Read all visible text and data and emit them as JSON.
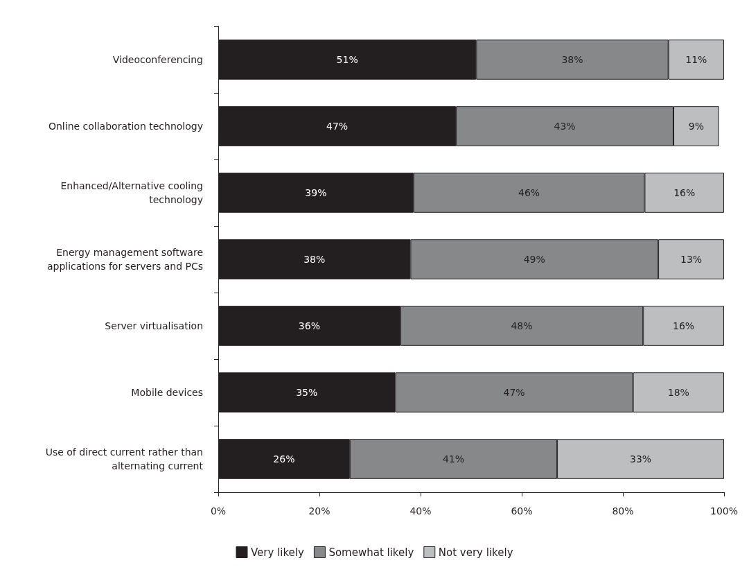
{
  "chart_data": {
    "type": "bar",
    "orientation": "horizontal",
    "stacked": true,
    "categories": [
      "Videoconferencing",
      "Online collaboration technology",
      "Enhanced/Alternative cooling\ntechnology",
      "Energy management software\napplications for servers and PCs",
      "Server virtualisation",
      "Mobile devices",
      "Use of direct current rather than\nalternating current"
    ],
    "series": [
      {
        "name": "Very likely",
        "color": "#231f20",
        "values": [
          51,
          47,
          38.6,
          38,
          36,
          35,
          26
        ],
        "value_labels": [
          "51%",
          "47%",
          "39%",
          "38%",
          "36%",
          "35%",
          "26%"
        ]
      },
      {
        "name": "Somewhat likely",
        "color": "#87888a",
        "values": [
          38,
          43,
          45.7,
          49,
          48,
          47,
          41
        ],
        "value_labels": [
          "38%",
          "43%",
          "46%",
          "49%",
          "48%",
          "47%",
          "41%"
        ]
      },
      {
        "name": "Not very likely",
        "color": "#bcbec0",
        "values": [
          11,
          9,
          15.7,
          13,
          16,
          18,
          33
        ],
        "value_labels": [
          "11%",
          "9%",
          "16%",
          "13%",
          "16%",
          "18%",
          "33%"
        ]
      }
    ],
    "xlim": [
      0,
      100
    ],
    "xticks": [
      {
        "value": 0,
        "label": "0%"
      },
      {
        "value": 20,
        "label": "20%"
      },
      {
        "value": 40,
        "label": "40%"
      },
      {
        "value": 60,
        "label": "60%"
      },
      {
        "value": 80,
        "label": "80%"
      },
      {
        "value": 100,
        "label": "100%"
      }
    ],
    "grid": false,
    "legend": "bottom"
  }
}
